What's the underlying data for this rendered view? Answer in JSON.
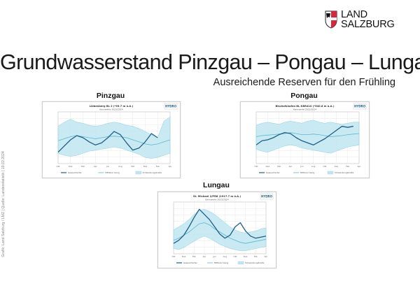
{
  "logo": {
    "line1": "LAND",
    "line2": "SALZBURG"
  },
  "header": {
    "title": "Grundwasserstand Pinzgau – Pongau – Lungau",
    "subtitle": "Ausreichende Reserven für den Frühling"
  },
  "side_credit": "Grafik: Land Salzburg / LMZ | Quelle: Landesstatistik | 19.02.2024",
  "colors": {
    "band": "#bfe6f0",
    "band_edge": "#8ccfe0",
    "mean": "#5bb6cf",
    "level": "#1f5f86",
    "grid": "#e3e3e3"
  },
  "chart_data": [
    {
      "type": "line",
      "panel_title": "Pinzgau",
      "chart_title": "Liebenberg BL 2 (*95.7 m ü.A.)",
      "chart_subtitle": "Kennwerte 2023/2024",
      "badge": "HYDRO",
      "legend": [
        "Gespeicherter",
        "Mittlerer Gang",
        "Schwankungsbreite"
      ],
      "x": [
        "Okt",
        "Nov",
        "Dez",
        "Jän",
        "Feb",
        "Mär",
        "Apr",
        "Mai",
        "Jun",
        "Jul",
        "Aug",
        "Sep",
        "Okt",
        "Nov",
        "Dez",
        "Jän",
        "Feb",
        "Mär",
        "Apr"
      ],
      "series": [
        {
          "name": "Schwankungsbreite max",
          "values": [
            0.72,
            0.8,
            0.86,
            0.8,
            0.78,
            0.74,
            0.72,
            0.74,
            0.78,
            0.8,
            0.78,
            0.74,
            0.72,
            0.68,
            0.62,
            0.56,
            0.5,
            0.82,
            0.9
          ]
        },
        {
          "name": "Schwankungsbreite min",
          "values": [
            0.2,
            0.16,
            0.14,
            0.16,
            0.2,
            0.24,
            0.26,
            0.28,
            0.3,
            0.32,
            0.3,
            0.26,
            0.22,
            0.18,
            0.12,
            0.1,
            0.12,
            0.16,
            0.2
          ]
        },
        {
          "name": "Mittlerer Gang",
          "values": [
            0.44,
            0.48,
            0.52,
            0.54,
            0.52,
            0.5,
            0.48,
            0.5,
            0.52,
            0.53,
            0.52,
            0.5,
            0.46,
            0.42,
            0.38,
            0.36,
            0.38,
            0.42,
            0.46
          ]
        },
        {
          "name": "Gespeicherter",
          "values": [
            0.22,
            0.34,
            0.46,
            0.54,
            0.5,
            0.42,
            0.36,
            0.4,
            0.5,
            0.62,
            0.56,
            0.4,
            0.26,
            0.3,
            0.42,
            0.58,
            0.5,
            null,
            null
          ]
        }
      ]
    },
    {
      "type": "line",
      "panel_title": "Pongau",
      "chart_title": "Bischofshofen BL KBR410 (*540.8 m ü.A.)",
      "chart_subtitle": "Kennwerte 2023/2024",
      "badge": "HYDRO",
      "legend": [
        "Gespeicherter",
        "Mittlerer Gang",
        "Schwankungsbreite"
      ],
      "x": [
        "Okt",
        "Nov",
        "Dez",
        "Jän",
        "Feb",
        "Mär",
        "Apr",
        "Mai",
        "Jun",
        "Jul",
        "Aug",
        "Sep",
        "Okt",
        "Nov",
        "Dez",
        "Jän",
        "Feb",
        "Mär",
        "Apr"
      ],
      "series": [
        {
          "name": "Schwankungsbreite max",
          "values": [
            0.74,
            0.78,
            0.8,
            0.78,
            0.76,
            0.8,
            0.82,
            0.8,
            0.78,
            0.82,
            0.84,
            0.8,
            0.78,
            0.8,
            0.78,
            0.76,
            0.78,
            0.8,
            0.8
          ]
        },
        {
          "name": "Schwankungsbreite min",
          "values": [
            0.28,
            0.24,
            0.22,
            0.26,
            0.3,
            0.34,
            0.36,
            0.34,
            0.3,
            0.28,
            0.26,
            0.24,
            0.22,
            0.2,
            0.24,
            0.28,
            0.32,
            0.34,
            0.36
          ]
        },
        {
          "name": "Mittlerer Gang",
          "values": [
            0.52,
            0.54,
            0.55,
            0.56,
            0.57,
            0.58,
            0.6,
            0.58,
            0.56,
            0.56,
            0.57,
            0.56,
            0.54,
            0.52,
            0.53,
            0.54,
            0.56,
            0.57,
            0.58
          ]
        },
        {
          "name": "Gespeicherter",
          "values": [
            0.36,
            0.44,
            0.46,
            0.5,
            0.56,
            0.6,
            0.58,
            0.5,
            0.44,
            0.4,
            0.36,
            0.42,
            0.48,
            0.56,
            0.64,
            0.72,
            0.7,
            0.72,
            null
          ]
        }
      ]
    },
    {
      "type": "line",
      "panel_title": "Lungau",
      "chart_title": "St. Michael 2/PR8 (1917.7 m ü.A.)",
      "chart_subtitle": "Kennwerte 2023/2024",
      "badge": "HYDRO",
      "legend": [
        "Gespeicherter",
        "Mittlerer Gang",
        "Schwankungsbreite"
      ],
      "x": [
        "Okt",
        "Nov",
        "Dez",
        "Jän",
        "Feb",
        "Mär",
        "Apr",
        "Mai",
        "Jun",
        "Jul",
        "Aug",
        "Sep",
        "Okt",
        "Nov",
        "Dez",
        "Jän",
        "Feb",
        "Mär",
        "Apr"
      ],
      "series": [
        {
          "name": "Schwankungsbreite max",
          "values": [
            0.46,
            0.52,
            0.58,
            0.66,
            0.76,
            0.84,
            0.86,
            0.82,
            0.76,
            0.68,
            0.6,
            0.52,
            0.46,
            0.42,
            0.4,
            0.42,
            0.44,
            0.48,
            0.5
          ]
        },
        {
          "name": "Schwankungsbreite min",
          "values": [
            0.1,
            0.08,
            0.12,
            0.18,
            0.24,
            0.3,
            0.34,
            0.3,
            0.24,
            0.18,
            0.14,
            0.1,
            0.08,
            0.06,
            0.06,
            0.08,
            0.1,
            0.12,
            0.14
          ]
        },
        {
          "name": "Mittlerer Gang",
          "values": [
            0.26,
            0.3,
            0.36,
            0.42,
            0.5,
            0.58,
            0.6,
            0.56,
            0.48,
            0.42,
            0.36,
            0.3,
            0.26,
            0.22,
            0.2,
            0.22,
            0.24,
            0.26,
            0.28
          ]
        },
        {
          "name": "Gespeicherter",
          "values": [
            0.2,
            0.26,
            0.36,
            0.52,
            0.7,
            0.86,
            0.76,
            0.66,
            0.52,
            0.38,
            0.3,
            0.36,
            0.52,
            0.6,
            0.44,
            0.34,
            0.3,
            0.32,
            0.34
          ]
        }
      ]
    }
  ]
}
